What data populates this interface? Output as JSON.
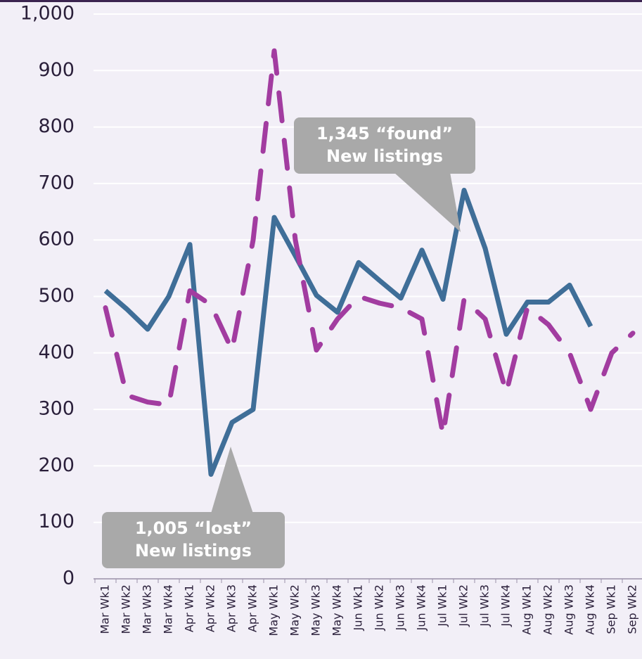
{
  "chart_data": {
    "type": "line",
    "categories": [
      "Mar Wk1",
      "Mar Wk2",
      "Mar Wk3",
      "Mar Wk4",
      "Apr Wk1",
      "Apr Wk2",
      "Apr Wk3",
      "Apr Wk4",
      "May Wk1",
      "May Wk2",
      "May Wk3",
      "May Wk4",
      "Jun Wk1",
      "Jun Wk2",
      "Jun Wk3",
      "Jun Wk4",
      "Jul Wk1",
      "Jul Wk2",
      "Jul Wk3",
      "Jul Wk4",
      "Aug Wk1",
      "Aug Wk2",
      "Aug Wk3",
      "Aug Wk4",
      "Sep Wk1",
      "Sep Wk2"
    ],
    "series": [
      {
        "color": "#3f6e98",
        "dash": false,
        "values": [
          510,
          478,
          442,
          500,
          592,
          185,
          277,
          300,
          640,
          572,
          502,
          472,
          560,
          528,
          497,
          582,
          495,
          688,
          585,
          433,
          490,
          490,
          520,
          447,
          null,
          null
        ]
      },
      {
        "color": "#a23ca0",
        "dash": true,
        "values": [
          480,
          325,
          313,
          308,
          510,
          485,
          405,
          600,
          935,
          600,
          405,
          460,
          500,
          488,
          480,
          460,
          255,
          495,
          460,
          330,
          480,
          450,
          400,
          300,
          400,
          435
        ]
      }
    ],
    "ylim": [
      0,
      1000
    ],
    "yticks": [
      0,
      100,
      200,
      300,
      400,
      500,
      600,
      700,
      800,
      900,
      {
        "value": 1000,
        "label": "1,000"
      }
    ],
    "grid": true,
    "annotations": [
      {
        "lines": [
          "1,345 “found”",
          "New listings"
        ]
      },
      {
        "lines": [
          "1,005 “lost”",
          "New listings"
        ]
      }
    ]
  }
}
